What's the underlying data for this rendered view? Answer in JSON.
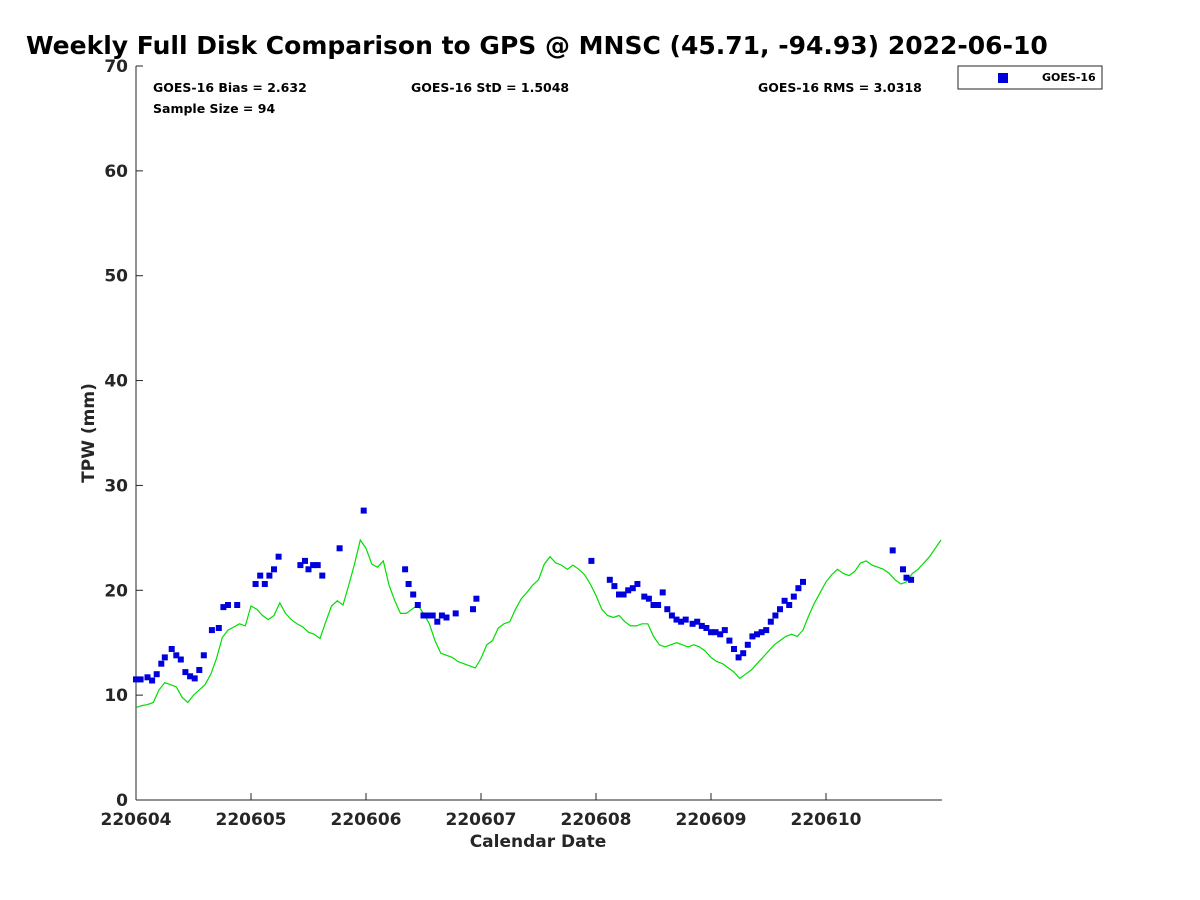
{
  "chart_data": {
    "type": "scatter",
    "title": "Weekly Full Disk Comparison to GPS @ MNSC (45.71, -94.93) 2022-06-10",
    "xlabel": "Calendar Date",
    "ylabel": "TPW (mm)",
    "xlim": [
      0,
      7
    ],
    "ylim": [
      0,
      70
    ],
    "x_ticks": [
      0,
      1,
      2,
      3,
      4,
      5,
      6
    ],
    "x_tick_labels": [
      "220604",
      "220605",
      "220606",
      "220607",
      "220608",
      "220609",
      "220610"
    ],
    "y_ticks": [
      0,
      10,
      20,
      30,
      40,
      50,
      60,
      70
    ],
    "y_tick_labels": [
      "0",
      "10",
      "20",
      "30",
      "40",
      "50",
      "60",
      "70"
    ],
    "stats": {
      "bias": "GOES-16 Bias = 2.632",
      "std": "GOES-16 StD = 1.5048",
      "rms": "GOES-16 RMS = 3.0318",
      "sample": "Sample Size = 94"
    },
    "legend": {
      "position": "top-right",
      "entries": [
        "GOES-16"
      ]
    },
    "series": [
      {
        "name": "GOES-16",
        "kind": "markers",
        "color": "#0000dd",
        "x": [
          0.0,
          0.04,
          0.1,
          0.14,
          0.18,
          0.22,
          0.25,
          0.31,
          0.35,
          0.39,
          0.43,
          0.47,
          0.51,
          0.55,
          0.59,
          0.66,
          0.72,
          0.76,
          0.8,
          0.88,
          1.04,
          1.08,
          1.12,
          1.16,
          1.2,
          1.24,
          1.43,
          1.47,
          1.5,
          1.54,
          1.58,
          1.62,
          1.77,
          1.98,
          2.34,
          2.37,
          2.41,
          2.45,
          2.5,
          2.54,
          2.58,
          2.62,
          2.66,
          2.7,
          2.78,
          2.93,
          2.96,
          3.96,
          4.12,
          4.16,
          4.2,
          4.24,
          4.28,
          4.32,
          4.36,
          4.42,
          4.46,
          4.5,
          4.54,
          4.58,
          4.62,
          4.66,
          4.7,
          4.74,
          4.78,
          4.84,
          4.88,
          4.92,
          4.96,
          5.0,
          5.04,
          5.08,
          5.12,
          5.16,
          5.2,
          5.24,
          5.28,
          5.32,
          5.36,
          5.4,
          5.44,
          5.48,
          5.52,
          5.56,
          5.6,
          5.64,
          5.68,
          5.72,
          5.76,
          5.8,
          6.58,
          6.67,
          6.7,
          6.74
        ],
        "y": [
          11.5,
          11.5,
          11.7,
          11.4,
          12.0,
          13.0,
          13.6,
          14.4,
          13.8,
          13.4,
          12.2,
          11.8,
          11.6,
          12.4,
          13.8,
          16.2,
          16.4,
          18.4,
          18.6,
          18.6,
          20.6,
          21.4,
          20.6,
          21.4,
          22.0,
          23.2,
          22.4,
          22.8,
          22.0,
          22.4,
          22.4,
          21.4,
          24.0,
          27.6,
          22.0,
          20.6,
          19.6,
          18.6,
          17.6,
          17.6,
          17.6,
          17.0,
          17.6,
          17.4,
          17.8,
          18.2,
          19.2,
          22.8,
          21.0,
          20.4,
          19.6,
          19.6,
          20.0,
          20.2,
          20.6,
          19.4,
          19.2,
          18.6,
          18.6,
          19.8,
          18.2,
          17.6,
          17.2,
          17.0,
          17.2,
          16.8,
          17.0,
          16.6,
          16.4,
          16.0,
          16.0,
          15.8,
          16.2,
          15.2,
          14.4,
          13.6,
          14.0,
          14.8,
          15.6,
          15.8,
          16.0,
          16.2,
          17.0,
          17.6,
          18.2,
          19.0,
          18.6,
          19.4,
          20.2,
          20.8,
          23.8,
          22.0,
          21.2,
          21.0
        ]
      },
      {
        "name": "GPS",
        "kind": "line",
        "color": "#00dd00",
        "x": [
          0.0,
          0.05,
          0.1,
          0.15,
          0.2,
          0.25,
          0.3,
          0.35,
          0.4,
          0.45,
          0.5,
          0.55,
          0.6,
          0.65,
          0.7,
          0.75,
          0.8,
          0.85,
          0.9,
          0.95,
          1.0,
          1.05,
          1.1,
          1.15,
          1.2,
          1.25,
          1.3,
          1.35,
          1.4,
          1.45,
          1.5,
          1.55,
          1.6,
          1.65,
          1.7,
          1.75,
          1.8,
          1.85,
          1.9,
          1.95,
          2.0,
          2.05,
          2.1,
          2.15,
          2.2,
          2.25,
          2.3,
          2.35,
          2.4,
          2.45,
          2.5,
          2.55,
          2.6,
          2.65,
          2.7,
          2.75,
          2.8,
          2.85,
          2.9,
          2.95,
          3.0,
          3.05,
          3.1,
          3.15,
          3.2,
          3.25,
          3.3,
          3.35,
          3.4,
          3.45,
          3.5,
          3.55,
          3.6,
          3.65,
          3.7,
          3.75,
          3.8,
          3.85,
          3.9,
          3.95,
          4.0,
          4.05,
          4.1,
          4.15,
          4.2,
          4.25,
          4.3,
          4.35,
          4.4,
          4.45,
          4.5,
          4.55,
          4.6,
          4.65,
          4.7,
          4.75,
          4.8,
          4.85,
          4.9,
          4.95,
          5.0,
          5.05,
          5.1,
          5.15,
          5.2,
          5.25,
          5.3,
          5.35,
          5.4,
          5.45,
          5.5,
          5.55,
          5.6,
          5.65,
          5.7,
          5.75,
          5.8,
          5.85,
          5.9,
          5.95,
          6.0,
          6.05,
          6.1,
          6.15,
          6.2,
          6.25,
          6.3,
          6.35,
          6.4,
          6.45,
          6.5,
          6.55,
          6.6,
          6.65,
          6.7,
          6.75,
          6.8,
          6.85,
          6.9,
          6.95,
          7.0
        ],
        "y": [
          8.8,
          9.0,
          9.1,
          9.3,
          10.5,
          11.2,
          11.0,
          10.8,
          9.8,
          9.3,
          10.0,
          10.5,
          11.0,
          12.0,
          13.5,
          15.5,
          16.2,
          16.5,
          16.8,
          16.6,
          18.5,
          18.2,
          17.6,
          17.2,
          17.6,
          18.8,
          17.8,
          17.2,
          16.8,
          16.5,
          16.0,
          15.8,
          15.4,
          17.0,
          18.5,
          19.0,
          18.6,
          20.5,
          22.5,
          24.8,
          24.0,
          22.5,
          22.2,
          22.8,
          20.5,
          19.0,
          17.8,
          17.8,
          18.2,
          18.6,
          17.8,
          16.8,
          15.2,
          14.0,
          13.8,
          13.6,
          13.2,
          13.0,
          12.8,
          12.6,
          13.5,
          14.8,
          15.2,
          16.4,
          16.8,
          17.0,
          18.2,
          19.2,
          19.8,
          20.5,
          21.0,
          22.5,
          23.2,
          22.6,
          22.4,
          22.0,
          22.4,
          22.0,
          21.5,
          20.6,
          19.5,
          18.2,
          17.6,
          17.4,
          17.6,
          17.0,
          16.6,
          16.6,
          16.8,
          16.8,
          15.6,
          14.8,
          14.6,
          14.8,
          15.0,
          14.8,
          14.6,
          14.8,
          14.6,
          14.2,
          13.6,
          13.2,
          13.0,
          12.6,
          12.2,
          11.6,
          12.0,
          12.4,
          13.0,
          13.6,
          14.2,
          14.8,
          15.2,
          15.6,
          15.8,
          15.6,
          16.2,
          17.6,
          18.8,
          19.8,
          20.8,
          21.5,
          22.0,
          21.6,
          21.4,
          21.8,
          22.6,
          22.8,
          22.4,
          22.2,
          22.0,
          21.6,
          21.0,
          20.6,
          20.8,
          21.6,
          22.0,
          22.6,
          23.2,
          24.0,
          24.8
        ]
      }
    ]
  }
}
